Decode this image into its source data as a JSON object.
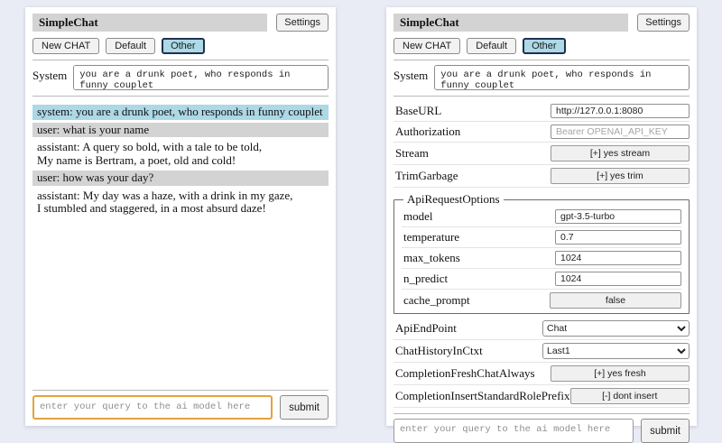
{
  "colors": {
    "page-bg": "#e9ecf5",
    "titlebar-bg": "#d3d3d3",
    "selected-session-bg": "#add8e6",
    "selected-session-border": "#1e3050",
    "system-msg-bg": "#add8e6",
    "user-msg-bg": "#d3d3d3",
    "focus-border": "#e2a33c"
  },
  "app": {
    "title": "SimpleChat",
    "settings_button": "Settings",
    "sessions": {
      "new": "New CHAT",
      "default": "Default",
      "other": "Other"
    },
    "system_label": "System",
    "system_prompt": "you are a drunk poet, who responds in funny couplet",
    "query_placeholder": "enter your query to the ai model here",
    "submit_label": "submit"
  },
  "chat": {
    "messages": [
      {
        "role": "system",
        "text": "system: you are a drunk poet, who responds in funny couplet"
      },
      {
        "role": "user",
        "text": "user: what is your name"
      },
      {
        "role": "assistant",
        "text": "assistant: A query so bold, with a tale to be told,\nMy name is Bertram, a poet, old and cold!"
      },
      {
        "role": "user",
        "text": "user: how was your day?"
      },
      {
        "role": "assistant",
        "text": "assistant: My day was a haze, with a drink in my gaze,\nI stumbled and staggered, in a most absurd daze!"
      }
    ]
  },
  "settings": {
    "baseurl": {
      "label": "BaseURL",
      "value": "http://127.0.0.1:8080"
    },
    "authorization": {
      "label": "Authorization",
      "placeholder": "Bearer OPENAI_API_KEY"
    },
    "stream": {
      "label": "Stream",
      "button": "[+] yes stream"
    },
    "trimgarbage": {
      "label": "TrimGarbage",
      "button": "[+] yes trim"
    },
    "api_request_options": {
      "legend": "ApiRequestOptions",
      "model": {
        "label": "model",
        "value": "gpt-3.5-turbo"
      },
      "temperature": {
        "label": "temperature",
        "value": "0.7"
      },
      "max_tokens": {
        "label": "max_tokens",
        "value": "1024"
      },
      "n_predict": {
        "label": "n_predict",
        "value": "1024"
      },
      "cache_prompt": {
        "label": "cache_prompt",
        "button": "false"
      }
    },
    "api_endpoint": {
      "label": "ApiEndPoint",
      "value": "Chat"
    },
    "chat_history_in_ctxt": {
      "label": "ChatHistoryInCtxt",
      "value": "Last1"
    },
    "completion_fresh_chat_always": {
      "label": "CompletionFreshChatAlways",
      "button": "[+] yes fresh"
    },
    "completion_insert_standard_role_prefix": {
      "label": "CompletionInsertStandardRolePrefix",
      "button": "[-] dont insert"
    }
  }
}
